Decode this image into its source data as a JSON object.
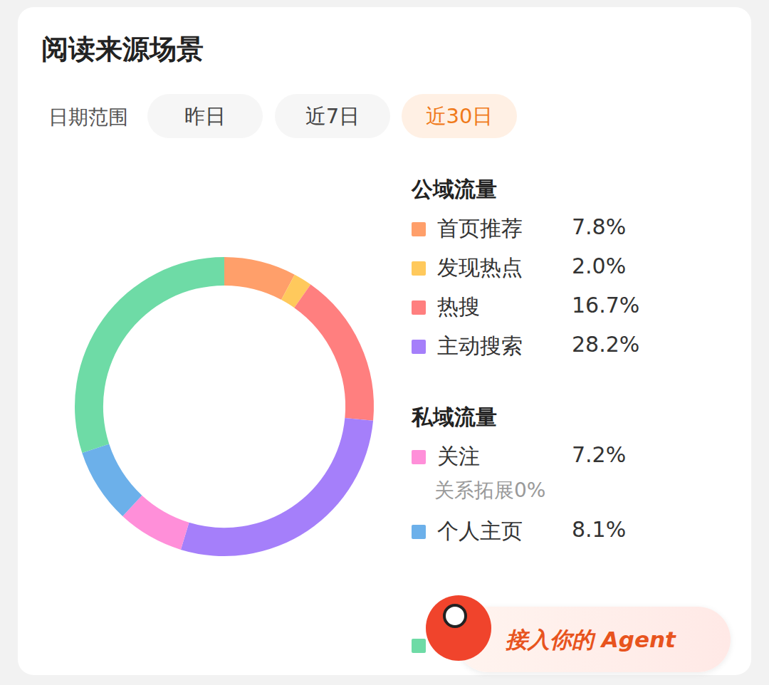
{
  "header": {
    "title": "阅读来源场景"
  },
  "date_range": {
    "label": "日期范围",
    "options": [
      "昨日",
      "近7日",
      "近30日"
    ],
    "selected": "近30日"
  },
  "chart_data": {
    "type": "doughnut",
    "categories": [
      "首页推荐",
      "发现热点",
      "热搜",
      "主动搜索",
      "关注",
      "个人主页",
      null
    ],
    "groups": [
      "公域流量",
      "公域流量",
      "公域流量",
      "公域流量",
      "私域流量",
      "私域流量",
      null
    ],
    "values": [
      7.8,
      2.0,
      16.7,
      28.2,
      7.2,
      8.1,
      30.0
    ],
    "value_labels": [
      "7.8%",
      "2.0%",
      "16.7%",
      "28.2%",
      "7.2%",
      "8.1%",
      null
    ],
    "colors": [
      "#ff9f6a",
      "#ffc95c",
      "#ff7f7f",
      "#a57ffa",
      "#ff8fd9",
      "#6cb0ea",
      "#6edba6"
    ],
    "notes": [
      {
        "name": "关系拓展",
        "value": 0,
        "value_label": "0%"
      }
    ]
  },
  "overlay": {
    "text": "接入你的 Agent"
  }
}
